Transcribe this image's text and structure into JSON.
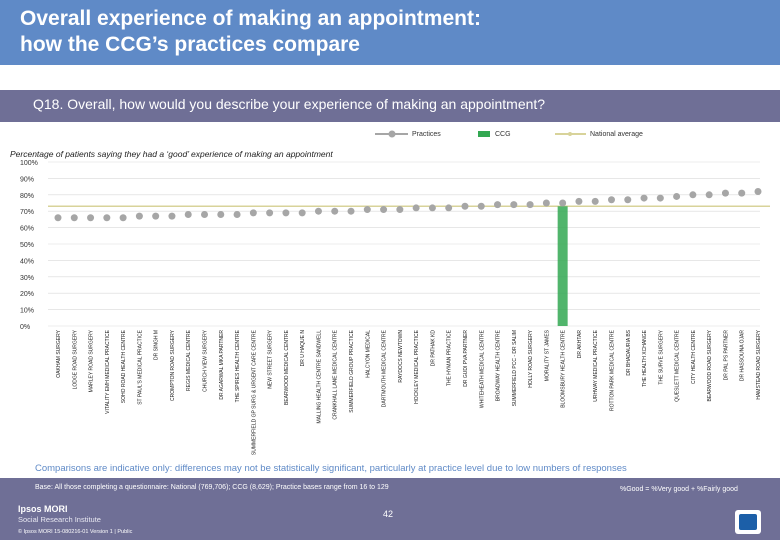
{
  "title_line1": "Overall experience of making an appointment:",
  "title_line2": "how the CCG’s practices compare",
  "question": "Q18. Overall, how would you describe your experience of making an appointment?",
  "legend": {
    "practices": "Practices",
    "ccg": "CCG",
    "national": "National average"
  },
  "subtitle": "Percentage of patients saying they had a ‘good’ experience of making an appointment",
  "footnote": "Comparisons are indicative only: differences may not be statistically significant, particularly at practice level due to low numbers of responses",
  "base": "Base: All those completing a questionnaire: National (769,706); CCG (8,629); Practice bases range from 16 to 129",
  "good_note": "%Good = %Very good + %Fairly good",
  "page_number": "42",
  "brand_line1": "Ipsos MORI",
  "brand_line2": "Social Research Institute",
  "copyright": "© Ipsos MORI    15-080216-01 Version 1 | Public",
  "colors": {
    "header": "#5f8ac7",
    "bar": "#6f6f96",
    "practice": "#a6a6a6",
    "ccg": "#33a852",
    "national": "#d8d39a"
  },
  "chart_data": {
    "type": "scatter",
    "title": "Percentage of patients saying they had a ‘good’ experience of making an appointment",
    "ylabel": "",
    "xlabel": "",
    "ylim": [
      0,
      100
    ],
    "yticks": [
      "0%",
      "10%",
      "20%",
      "30%",
      "40%",
      "50%",
      "60%",
      "70%",
      "80%",
      "90%",
      "100%"
    ],
    "national_average": 73,
    "ccg_value": 73,
    "ccg_index": 31,
    "categories": [
      "OAKHAM SURGERY",
      "LODGE ROAD SURGERY",
      "MARLEY ROAD SURGERY",
      "VITALITY EMH MEDICAL PRACTICE",
      "SOHO ROAD HEALTH CENTRE",
      "ST PAUL'S MEDICAL PRACTICE",
      "DR SINGH M",
      "CROMPTON ROAD SURGERY",
      "REGIS MEDICAL CENTRE",
      "CHURCH VIEW SURGERY",
      "DR AGARWAL MKA PARTNER",
      "THE SPIRES HEALTH CENTRE",
      "SUMMERFIELD GP SURG & URGENT CARE CENTRE",
      "NEW STREET SURGERY",
      "BEARWOOD MEDICAL CENTRE",
      "DR U HAQUE N",
      "MALLING HEALTH CENTRE SANDWELL",
      "CRANKHALL LANE MEDICAL CENTRE",
      "SUMMERFIELD GROUP PRACTICE",
      "HALCYON MEDICAL",
      "DARTMOUTH MEDICAL CENTRE",
      "RAYDOCS NEWTOWN",
      "HOCKLEY MEDICAL PRACTICE",
      "DR PATHAK KD",
      "THE HYMAN PRACTICE",
      "DR GUDI PVA PARTNER",
      "WHITEHEATH MEDICAL CENTRE",
      "BROADWAY HEALTH CENTRE",
      "SUMMERFIELD PCC - DR SALIM",
      "HOLLY ROAD SURGERY",
      "MORALITY ST JAMES",
      "BLOOMSBURY HEALTH CENTRE",
      "DR AKHTAR",
      "URHWAY MEDICAL PRACTICE",
      "ROTTON PARK MEDICAL CENTRE",
      "DR BHADAURIA BS",
      "THE HEALTH XCHANGE",
      "THE SURVE SURGERY",
      "QUESLETT MEDICAL CENTRE",
      "CITY HEALTH CENTRE",
      "BEARWOOD ROAD SURGERY",
      "DR PAL PS PARTNER",
      "DR HASSOUNA OJAR",
      "HAMSTEAD ROAD SURGERY"
    ],
    "values": [
      66,
      66,
      66,
      66,
      66,
      67,
      67,
      67,
      68,
      68,
      68,
      68,
      69,
      69,
      69,
      69,
      70,
      70,
      70,
      71,
      71,
      71,
      72,
      72,
      72,
      73,
      73,
      74,
      74,
      74,
      75,
      75,
      76,
      76,
      77,
      77,
      78,
      78,
      79,
      80,
      80,
      81,
      81,
      82
    ]
  }
}
